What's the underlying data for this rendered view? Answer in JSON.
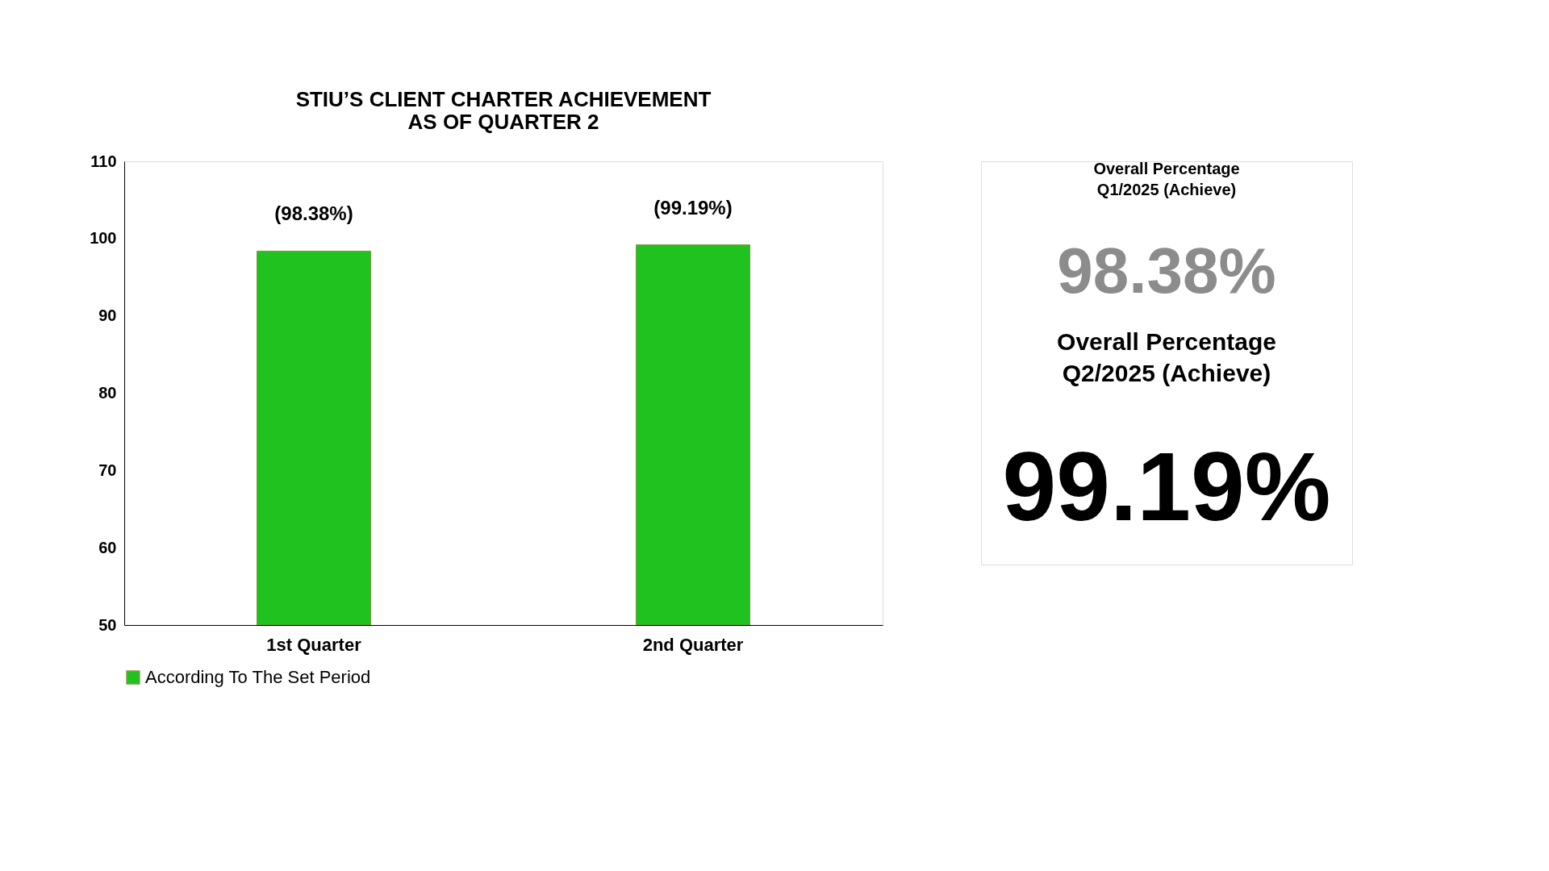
{
  "chart_data": [
    {
      "type": "bar",
      "title": "STIU’S CLIENT CHARTER   ACHIEVEMENT\nAS OF QUARTER 2",
      "categories": [
        "1st Quarter",
        "2nd Quarter"
      ],
      "series": [
        {
          "name": "According To The Set Period",
          "color": "#1fc21f",
          "values": [
            98.38,
            99.19
          ]
        }
      ],
      "value_labels": [
        "(98.38%)",
        "(99.19%)"
      ],
      "ylim": [
        50,
        110
      ],
      "yticks": [
        50,
        60,
        70,
        80,
        90,
        100,
        110
      ],
      "grid": false,
      "legend": "bottom"
    },
    {
      "type": "other",
      "annotations": [
        "Overall Percentage\nQ1/2025 (Achieve)",
        "98.38%",
        "Overall Percentage\nQ2/2025 (Achieve)",
        "99.19%"
      ]
    }
  ]
}
